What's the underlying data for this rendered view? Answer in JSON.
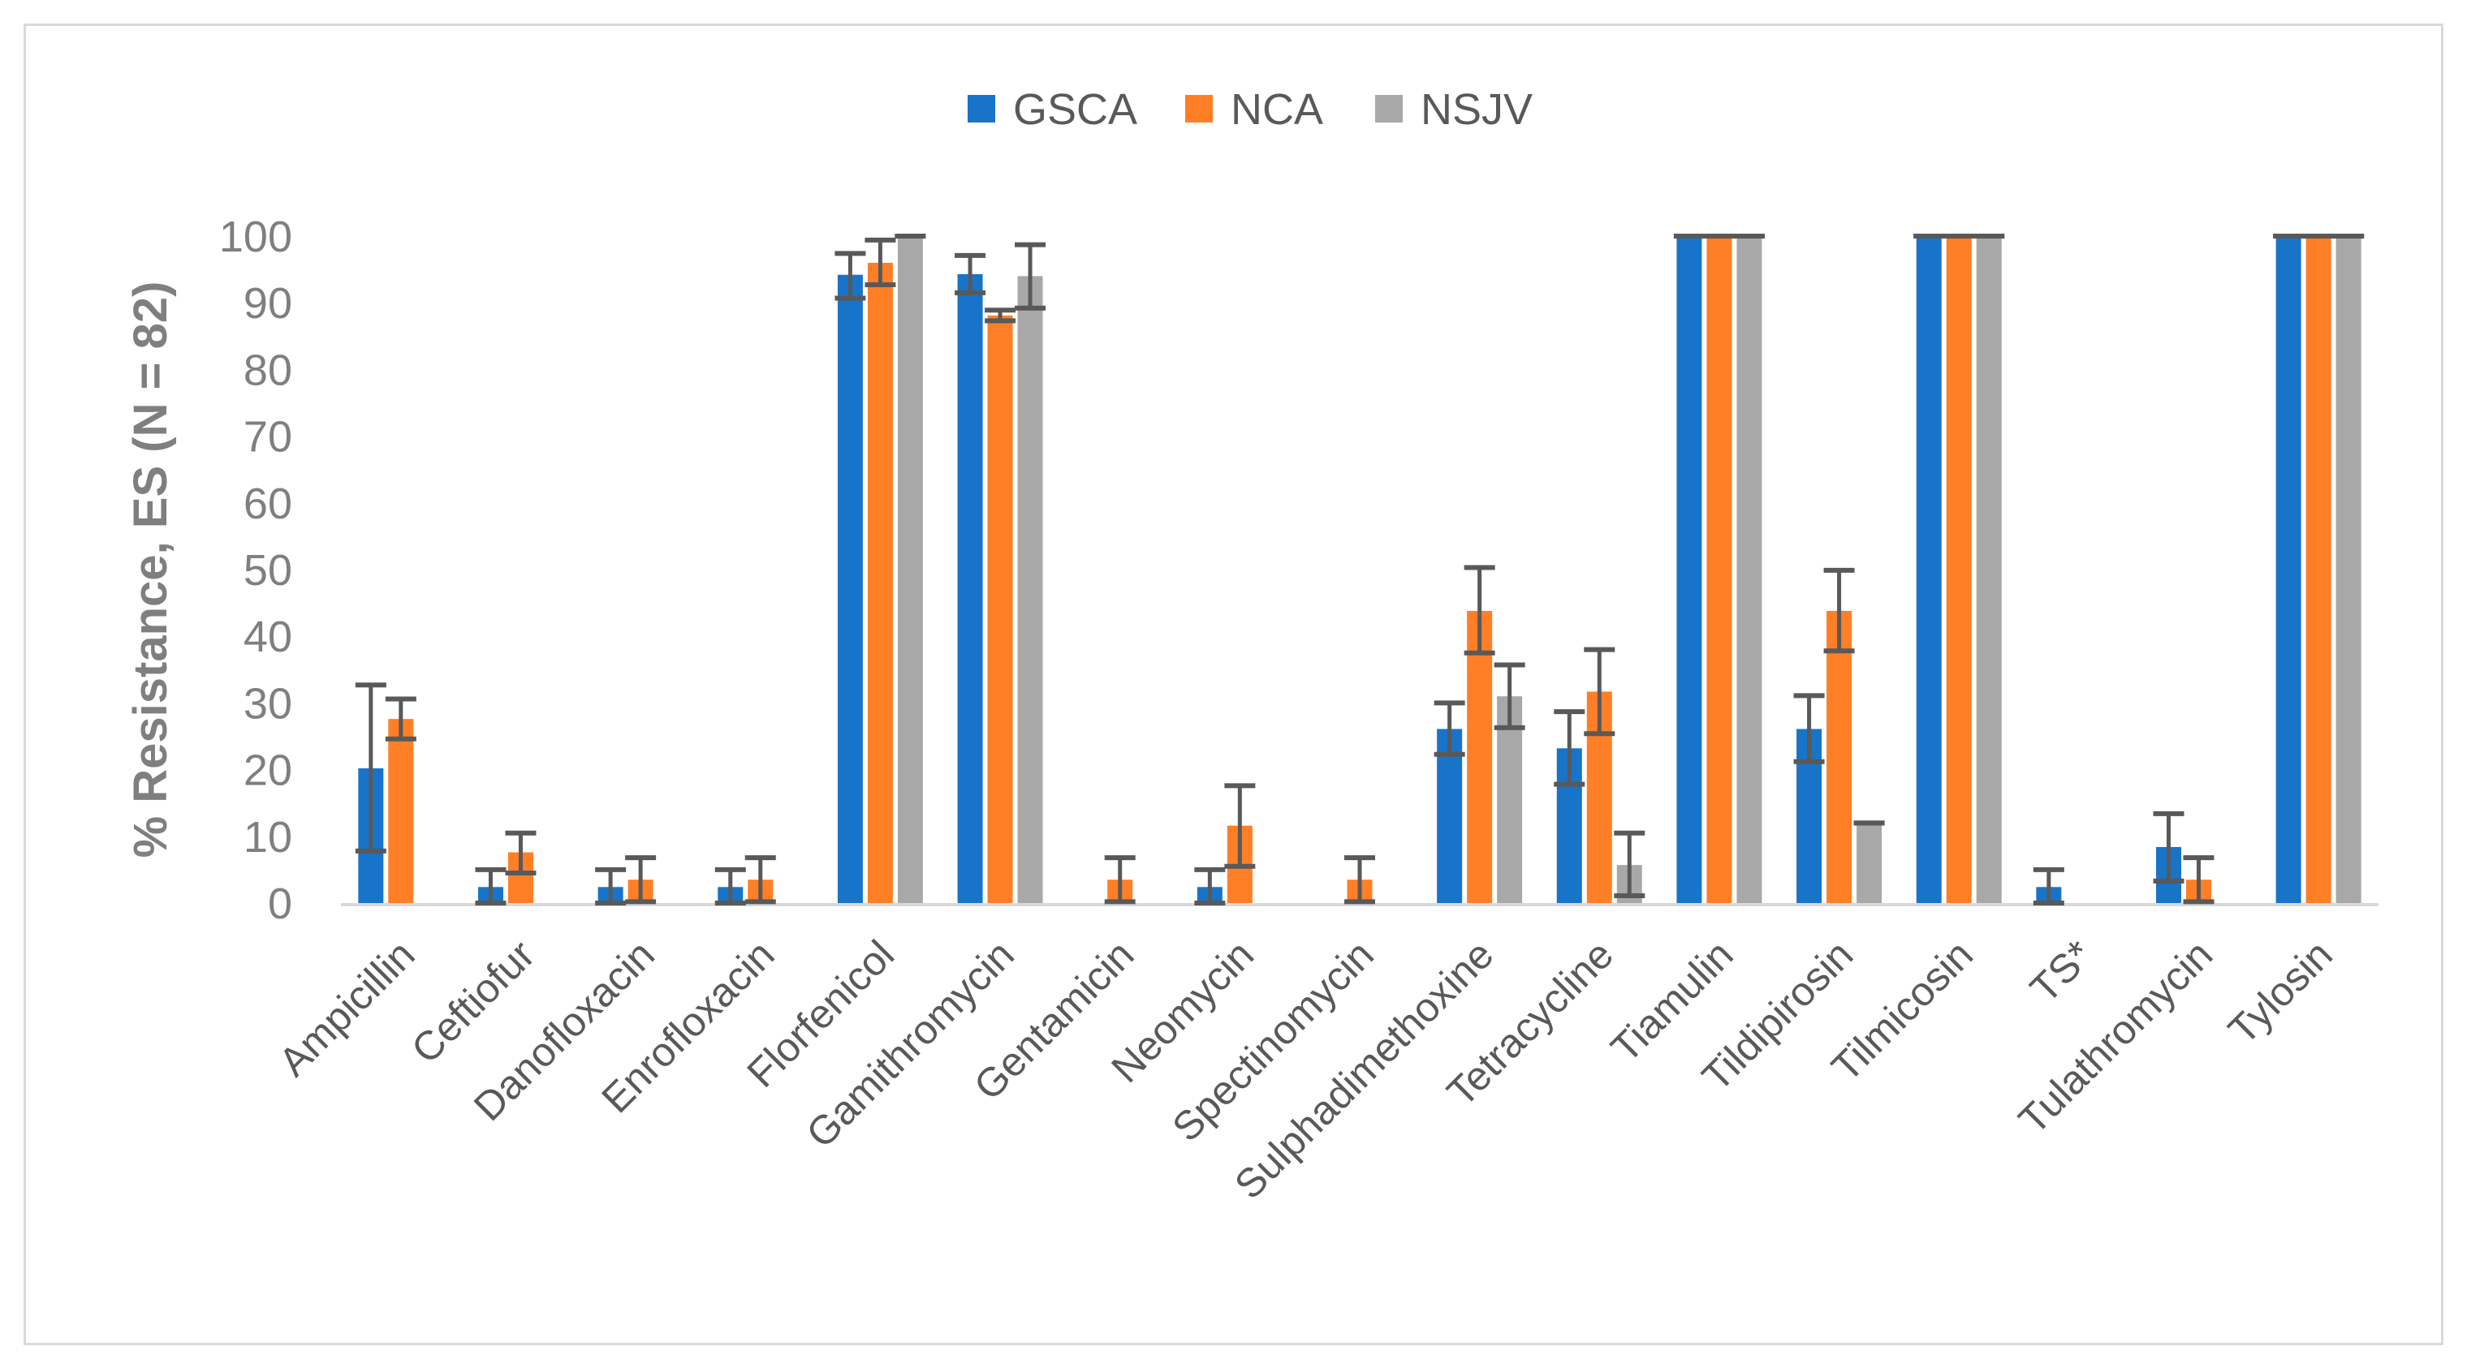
{
  "chart_data": {
    "type": "bar",
    "title": "",
    "xlabel": "",
    "ylabel": "% Resistance, ES (N = 82)",
    "ylim": [
      0,
      100
    ],
    "yticks": [
      "0",
      "10",
      "20",
      "30",
      "40",
      "50",
      "60",
      "70",
      "80",
      "90",
      "100"
    ],
    "grid": false,
    "legend_position": "top-center",
    "categories": [
      "Ampicillin",
      "Ceftiofur",
      "Danofloxacin",
      "Enrofloxacin",
      "Florfenicol",
      "Gamithromycin",
      "Gentamicin",
      "Neomycin",
      "Spectinomycin",
      "Sulphadimethoxine",
      "Tetracycline",
      "Tiamulin",
      "Tildipirosin",
      "Tilmicosin",
      "TS*",
      "Tulathromycin",
      "Tylosin"
    ],
    "series": [
      {
        "name": "GSCA",
        "color": "#1874C8",
        "values": [
          20.2,
          2.4,
          2.4,
          2.4,
          94.2,
          94.3,
          0,
          2.4,
          0,
          26.1,
          23.2,
          100,
          26.1,
          100,
          2.4,
          8.4,
          100
        ],
        "err_high": [
          32.7,
          5,
          5,
          5,
          97.4,
          97.1,
          null,
          5,
          null,
          30,
          28.7,
          100,
          31.1,
          100,
          5,
          13.4,
          100
        ],
        "err_low": [
          7.8,
          0,
          0,
          0,
          90.7,
          91.5,
          null,
          0,
          null,
          22.3,
          17.8,
          100,
          21.2,
          100,
          0,
          3.3,
          100
        ]
      },
      {
        "name": "NCA",
        "color": "#FF7F27",
        "values": [
          27.6,
          7.6,
          3.5,
          3.5,
          96,
          88.1,
          3.5,
          11.6,
          3.5,
          43.8,
          31.7,
          100,
          43.8,
          100,
          0,
          3.5,
          100
        ],
        "err_high": [
          30.6,
          10.5,
          6.8,
          6.8,
          99.4,
          88.9,
          6.8,
          17.6,
          6.8,
          50.3,
          38,
          100,
          49.9,
          100,
          null,
          6.8,
          100
        ],
        "err_low": [
          24.6,
          4.5,
          0.2,
          0.2,
          92.7,
          87.3,
          0.2,
          5.5,
          0.2,
          37.5,
          25.4,
          100,
          37.8,
          100,
          null,
          0.2,
          100
        ]
      },
      {
        "name": "NSJV",
        "color": "#A8A8A8",
        "values": [
          0,
          0,
          0,
          0,
          100,
          94,
          0,
          0,
          0,
          31,
          5.7,
          100,
          12,
          100,
          0,
          0,
          100
        ],
        "err_high": [
          null,
          null,
          null,
          null,
          100,
          98.7,
          null,
          null,
          null,
          35.7,
          10.5,
          100,
          12,
          100,
          null,
          null,
          100
        ],
        "err_low": [
          null,
          null,
          null,
          null,
          100,
          89.2,
          null,
          null,
          null,
          26.3,
          1.1,
          100,
          12,
          100,
          null,
          null,
          100
        ]
      }
    ]
  }
}
